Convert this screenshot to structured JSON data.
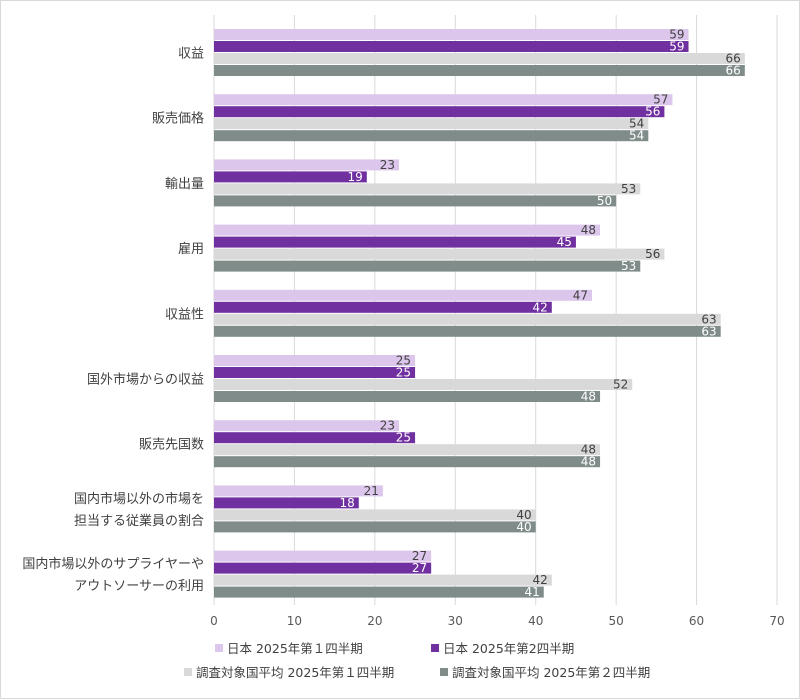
{
  "chart_data": {
    "type": "bar",
    "orientation": "horizontal",
    "categories": [
      [
        "収益"
      ],
      [
        "販売価格"
      ],
      [
        "輸出量"
      ],
      [
        "雇用"
      ],
      [
        "収益性"
      ],
      [
        "国外市場からの収益"
      ],
      [
        "販売先国数"
      ],
      [
        "国内市場以外の市場を",
        "担当する従業員の割合"
      ],
      [
        "国内市場以外のサプライヤーや",
        "アウトソーサーの利用"
      ]
    ],
    "series": [
      {
        "name": "日本 2025年第１四半期",
        "color": "#dcc6ec",
        "label_color": "#404040",
        "values": [
          59,
          57,
          23,
          48,
          47,
          25,
          23,
          21,
          27
        ]
      },
      {
        "name": "日本 2025年第2四半期",
        "color": "#7030a0",
        "label_color": "#ffffff",
        "values": [
          59,
          56,
          19,
          45,
          42,
          25,
          25,
          18,
          27
        ]
      },
      {
        "name": "調査対象国平均 2025年第１四半期",
        "color": "#d9d9d9",
        "label_color": "#404040",
        "values": [
          66,
          54,
          53,
          56,
          63,
          52,
          48,
          40,
          42
        ]
      },
      {
        "name": "調査対象国平均 2025年第２四半期",
        "color": "#7f8c8a",
        "label_color": "#ffffff",
        "values": [
          66,
          54,
          50,
          53,
          63,
          48,
          48,
          40,
          41
        ]
      }
    ],
    "xlim": [
      0,
      70
    ],
    "xticks": [
      "0",
      "10",
      "20",
      "30",
      "40",
      "50",
      "60",
      "70"
    ],
    "title": "",
    "xlabel": "",
    "ylabel": "",
    "grid": true,
    "legend_position": "bottom"
  }
}
